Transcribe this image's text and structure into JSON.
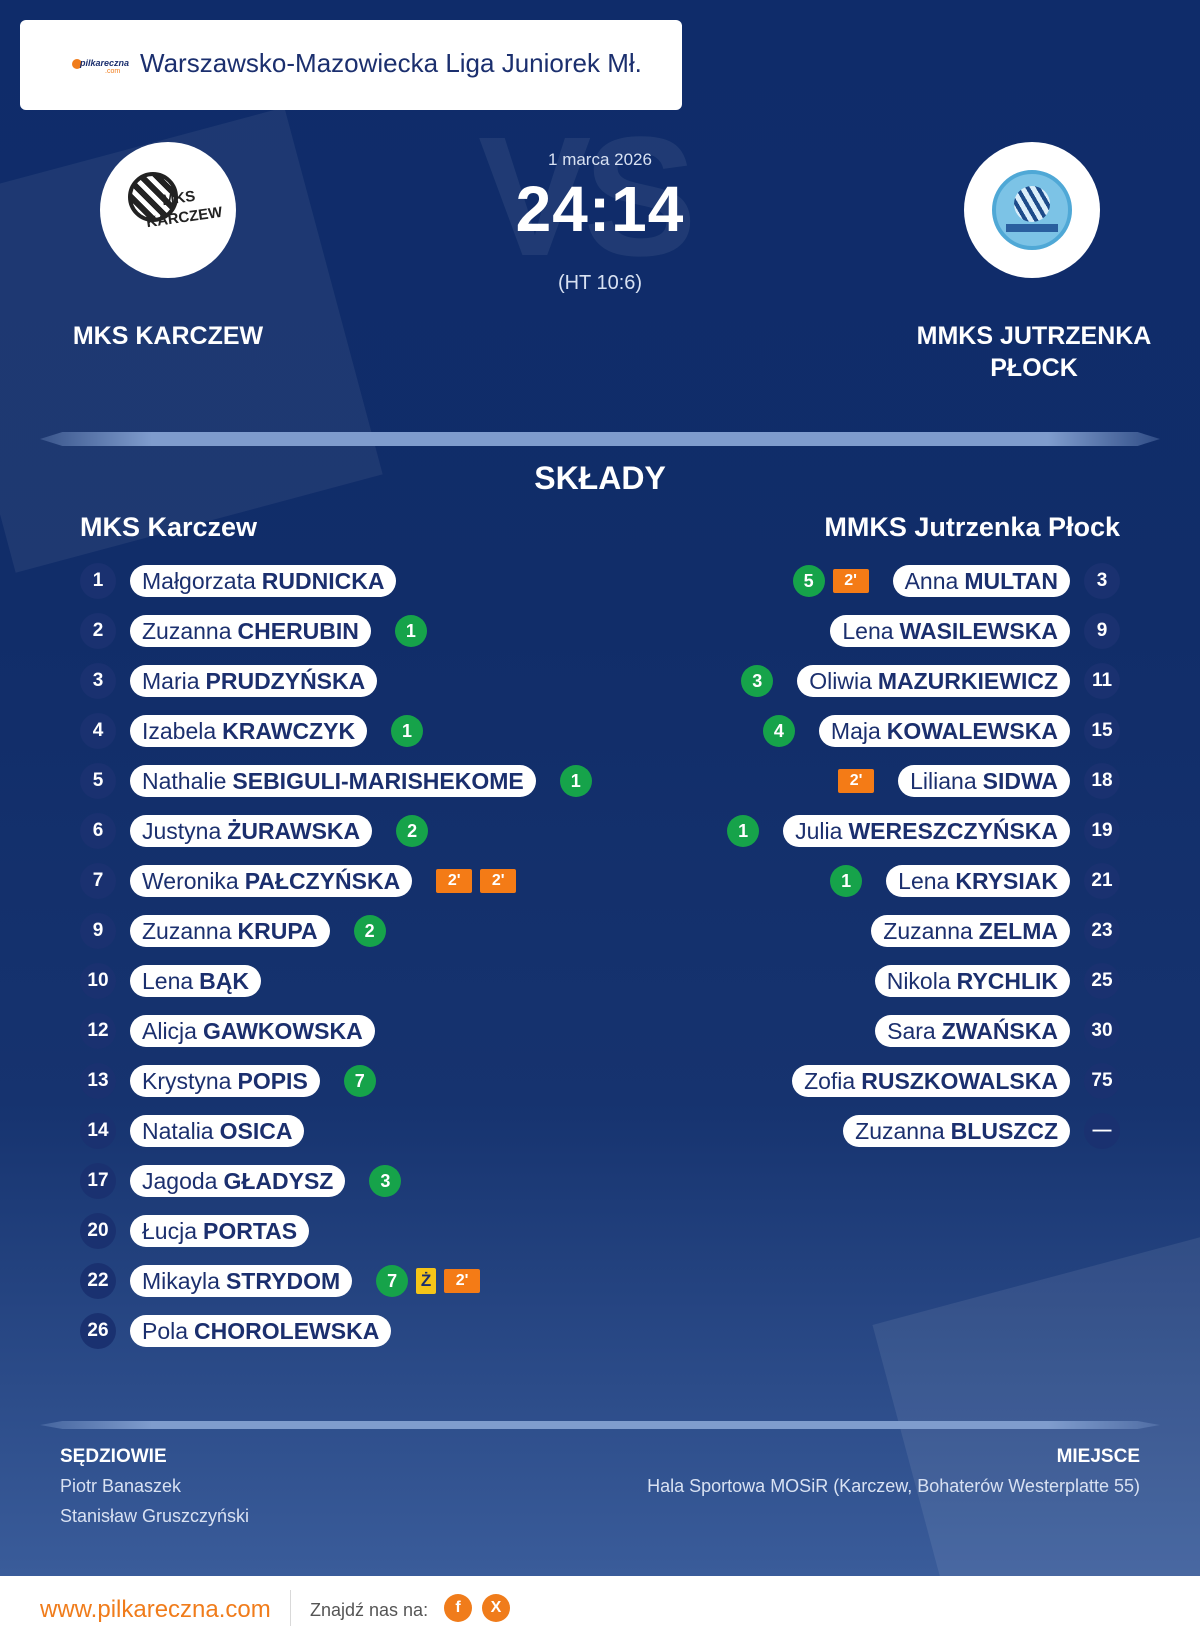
{
  "league": {
    "logo_text": "pilkareczna",
    "logo_domain": ".com",
    "name": "Warszawsko-Mazowiecka Liga Juniorek Mł."
  },
  "match": {
    "date": "1 marca 2026",
    "score": "24:14",
    "halftime": "(HT 10:6)",
    "vs_watermark": "VS",
    "home_team": "MKS KARCZEW",
    "away_team_line1": "MMKS JUTRZENKA",
    "away_team_line2": "PŁOCK",
    "home_logo_text1": "MKS",
    "home_logo_text2": "KARCZEW"
  },
  "lineups": {
    "title": "SKŁADY",
    "home_title": "MKS Karczew",
    "away_title": "MMKS Jutrzenka Płock",
    "home": [
      {
        "number": "1",
        "first": "Małgorzata",
        "last": "RUDNICKA",
        "events": []
      },
      {
        "number": "2",
        "first": "Zuzanna",
        "last": "CHERUBIN",
        "events": [
          {
            "type": "goal",
            "text": "1"
          }
        ]
      },
      {
        "number": "3",
        "first": "Maria",
        "last": "PRUDZYŃSKA",
        "events": []
      },
      {
        "number": "4",
        "first": "Izabela",
        "last": "KRAWCZYK",
        "events": [
          {
            "type": "goal",
            "text": "1"
          }
        ]
      },
      {
        "number": "5",
        "first": "Nathalie",
        "last": "SEBIGULI-MARISHEKOME",
        "events": [
          {
            "type": "goal",
            "text": "1"
          }
        ]
      },
      {
        "number": "6",
        "first": "Justyna",
        "last": "ŻURAWSKA",
        "events": [
          {
            "type": "goal",
            "text": "2"
          }
        ]
      },
      {
        "number": "7",
        "first": "Weronika",
        "last": "PAŁCZYŃSKA",
        "events": [
          {
            "type": "susp",
            "text": "2'"
          },
          {
            "type": "susp",
            "text": "2'"
          }
        ]
      },
      {
        "number": "9",
        "first": "Zuzanna",
        "last": "KRUPA",
        "events": [
          {
            "type": "goal",
            "text": "2"
          }
        ]
      },
      {
        "number": "10",
        "first": "Lena",
        "last": "BĄK",
        "events": []
      },
      {
        "number": "12",
        "first": "Alicja",
        "last": "GAWKOWSKA",
        "events": []
      },
      {
        "number": "13",
        "first": "Krystyna",
        "last": "POPIS",
        "events": [
          {
            "type": "goal",
            "text": "7"
          }
        ]
      },
      {
        "number": "14",
        "first": "Natalia",
        "last": "OSICA",
        "events": []
      },
      {
        "number": "17",
        "first": "Jagoda",
        "last": "GŁADYSZ",
        "events": [
          {
            "type": "goal",
            "text": "3"
          }
        ]
      },
      {
        "number": "20",
        "first": "Łucja",
        "last": "PORTAS",
        "events": []
      },
      {
        "number": "22",
        "first": "Mikayla",
        "last": "STRYDOM",
        "events": [
          {
            "type": "goal",
            "text": "7"
          },
          {
            "type": "yellow",
            "text": "Ż"
          },
          {
            "type": "susp",
            "text": "2'"
          }
        ]
      },
      {
        "number": "26",
        "first": "Pola",
        "last": "CHOROLEWSKA",
        "events": []
      }
    ],
    "away": [
      {
        "number": "3",
        "first": "Anna",
        "last": "MULTAN",
        "events": [
          {
            "type": "susp",
            "text": "2'"
          },
          {
            "type": "goal",
            "text": "5"
          }
        ]
      },
      {
        "number": "9",
        "first": "Lena",
        "last": "WASILEWSKA",
        "events": []
      },
      {
        "number": "11",
        "first": "Oliwia",
        "last": "MAZURKIEWICZ",
        "events": [
          {
            "type": "goal",
            "text": "3"
          }
        ]
      },
      {
        "number": "15",
        "first": "Maja",
        "last": "KOWALEWSKA",
        "events": [
          {
            "type": "goal",
            "text": "4"
          }
        ]
      },
      {
        "number": "18",
        "first": "Liliana",
        "last": "SIDWA",
        "events": [
          {
            "type": "susp",
            "text": "2'"
          }
        ]
      },
      {
        "number": "19",
        "first": "Julia",
        "last": "WERESZCZYŃSKA",
        "events": [
          {
            "type": "goal",
            "text": "1"
          }
        ]
      },
      {
        "number": "21",
        "first": "Lena",
        "last": "KRYSIAK",
        "events": [
          {
            "type": "goal",
            "text": "1"
          }
        ]
      },
      {
        "number": "23",
        "first": "Zuzanna",
        "last": "ZELMA",
        "events": []
      },
      {
        "number": "25",
        "first": "Nikola",
        "last": "RYCHLIK",
        "events": []
      },
      {
        "number": "30",
        "first": "Sara",
        "last": "ZWAŃSKA",
        "events": []
      },
      {
        "number": "75",
        "first": "Zofia",
        "last": "RUSZKOWALSKA",
        "events": []
      },
      {
        "number": "—",
        "first": "Zuzanna",
        "last": "BLUSZCZ",
        "events": []
      }
    ]
  },
  "officials": {
    "referees_title": "SĘDZIOWIE",
    "referees": [
      "Piotr Banaszek",
      "Stanisław Gruszczyński"
    ],
    "venue_title": "MIEJSCE",
    "venue": "Hala Sportowa MOSiR (Karczew, Bohaterów Westerplatte 55)"
  },
  "footer": {
    "site": "www.pilkareczna.com",
    "find_us": "Znajdź nas na:",
    "social": [
      {
        "icon": "facebook-icon",
        "label": "f"
      },
      {
        "icon": "x-icon",
        "label": "X"
      }
    ]
  },
  "colors": {
    "navy": "#112d69",
    "orange": "#f07c1b",
    "goal_green": "#16a34a",
    "suspension": "#f47b16",
    "yellow_card": "#f5c518"
  }
}
